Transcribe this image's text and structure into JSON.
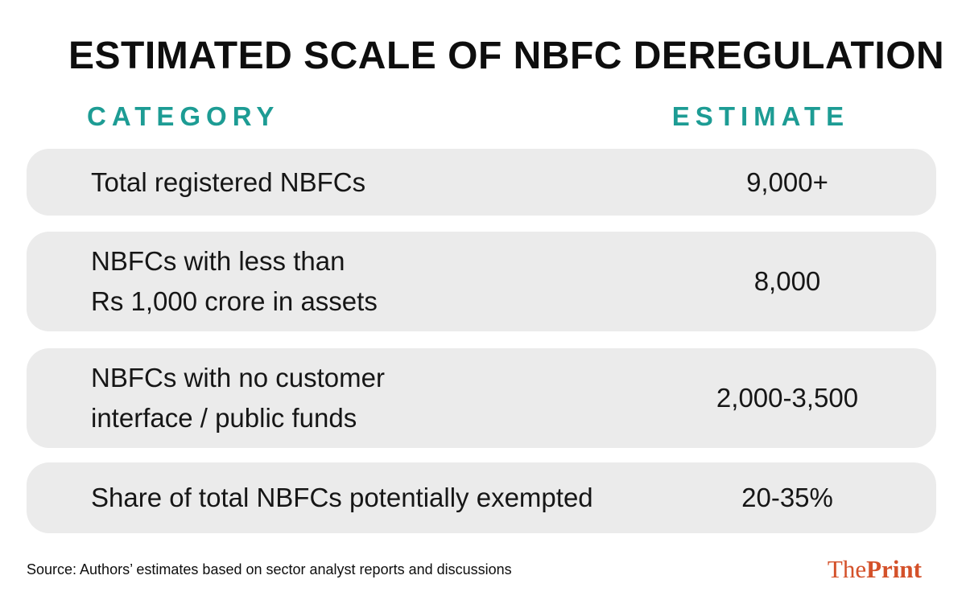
{
  "title": "ESTIMATED SCALE OF NBFC DEREGULATION",
  "header": {
    "category": "CATEGORY",
    "estimate": "ESTIMATE"
  },
  "rows": [
    {
      "category_lines": [
        "Total registered NBFCs",
        ""
      ],
      "estimate": "9,000+"
    },
    {
      "category_lines": [
        "NBFCs with less than",
        "Rs 1,000 crore in assets"
      ],
      "estimate": "8,000"
    },
    {
      "category_lines": [
        "NBFCs with no customer",
        "interface / public funds"
      ],
      "estimate": "2,000-3,500"
    },
    {
      "category_lines": [
        "Share of total NBFCs potentially exempted",
        ""
      ],
      "estimate": "20-35%"
    }
  ],
  "source": "Source: Authors’ estimates based on sector analyst reports and discussions",
  "logo": {
    "the": "The",
    "print": "Print"
  },
  "colors": {
    "accent_teal": "#1d9c94",
    "row_background": "#ebebeb",
    "logo_orange": "#d4512a",
    "text": "#121212"
  },
  "chart_data": {
    "type": "table",
    "title": "ESTIMATED SCALE OF NBFC DEREGULATION",
    "columns": [
      "CATEGORY",
      "ESTIMATE"
    ],
    "rows": [
      [
        "Total registered NBFCs",
        "9,000+"
      ],
      [
        "NBFCs with less than Rs 1,000 crore in assets",
        "8,000"
      ],
      [
        "NBFCs with no customer interface / public funds",
        "2,000-3,500"
      ],
      [
        "Share of total NBFCs potentially exempted",
        "20-35%"
      ]
    ],
    "source": "Source: Authors’ estimates based on sector analyst reports and discussions",
    "legend": "none",
    "grid": "off"
  }
}
